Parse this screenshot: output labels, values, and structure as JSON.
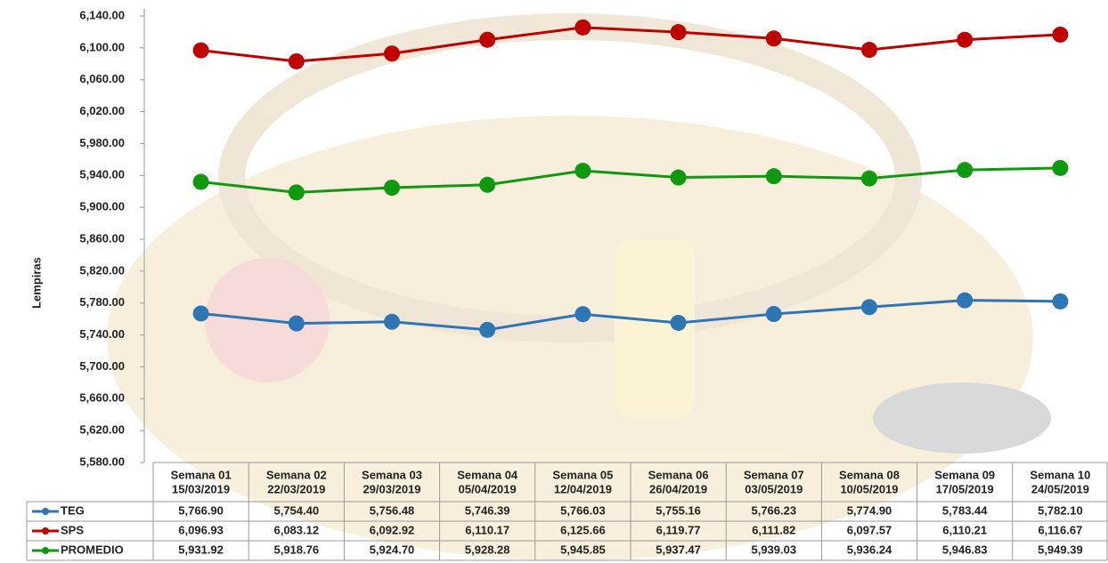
{
  "chart_data": {
    "type": "line",
    "y_label": "Lempiras",
    "categories": [
      "Semana 01",
      "Semana 02",
      "Semana 03",
      "Semana 04",
      "Semana 05",
      "Semana 06",
      "Semana 07",
      "Semana 08",
      "Semana 09",
      "Semana 10"
    ],
    "dates": [
      "15/03/2019",
      "22/03/2019",
      "29/03/2019",
      "05/04/2019",
      "12/04/2019",
      "26/04/2019",
      "03/05/2019",
      "10/05/2019",
      "17/05/2019",
      "24/05/2019"
    ],
    "series": [
      {
        "name": "TEG",
        "color": "#2e75b6",
        "values": [
          5766.9,
          5754.4,
          5756.48,
          5746.39,
          5766.03,
          5755.16,
          5766.23,
          5774.9,
          5783.44,
          5782.1
        ],
        "value_labels": [
          "5,766.90",
          "5,754.40",
          "5,756.48",
          "5,746.39",
          "5,766.03",
          "5,755.16",
          "5,766.23",
          "5,774.90",
          "5,783.44",
          "5,782.10"
        ]
      },
      {
        "name": "SPS",
        "color": "#c00000",
        "values": [
          6096.93,
          6083.12,
          6092.92,
          6110.17,
          6125.66,
          6119.77,
          6111.82,
          6097.57,
          6110.21,
          6116.67
        ],
        "value_labels": [
          "6,096.93",
          "6,083.12",
          "6,092.92",
          "6,110.17",
          "6,125.66",
          "6,119.77",
          "6,111.82",
          "6,097.57",
          "6,110.21",
          "6,116.67"
        ]
      },
      {
        "name": "PROMEDIO",
        "color": "#0e9a0e",
        "values": [
          5931.92,
          5918.76,
          5924.7,
          5928.28,
          5945.85,
          5937.47,
          5939.03,
          5936.24,
          5946.83,
          5949.39
        ],
        "value_labels": [
          "5,931.92",
          "5,918.76",
          "5,924.70",
          "5,928.28",
          "5,945.85",
          "5,937.47",
          "5,939.03",
          "5,936.24",
          "5,946.83",
          "5,949.39"
        ]
      }
    ],
    "ylim": [
      5580,
      6140
    ],
    "yticks": [
      {
        "value": 5580,
        "label": "5,580.00"
      },
      {
        "value": 5620,
        "label": "5,620.00"
      },
      {
        "value": 5660,
        "label": "5,660.00"
      },
      {
        "value": 5700,
        "label": "5,700.00"
      },
      {
        "value": 5740,
        "label": "5,740.00"
      },
      {
        "value": 5780,
        "label": "5,780.00"
      },
      {
        "value": 5820,
        "label": "5,820.00"
      },
      {
        "value": 5860,
        "label": "5,860.00"
      },
      {
        "value": 5900,
        "label": "5,900.00"
      },
      {
        "value": 5940,
        "label": "5,940.00"
      },
      {
        "value": 5980,
        "label": "5,980.00"
      },
      {
        "value": 6020,
        "label": "6,020.00"
      },
      {
        "value": 6060,
        "label": "6,060.00"
      },
      {
        "value": 6100,
        "label": "6,100.00"
      },
      {
        "value": 6140,
        "label": "6,140.00"
      }
    ],
    "grid": false
  }
}
